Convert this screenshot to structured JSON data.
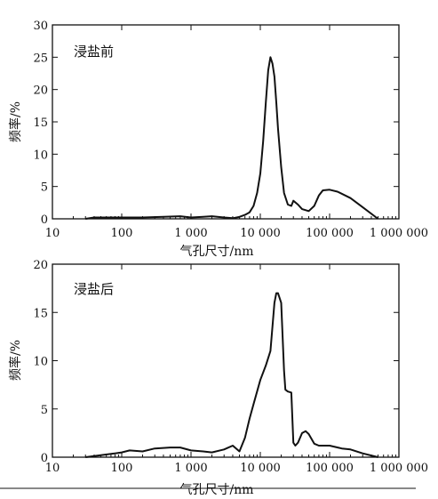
{
  "chart_data": [
    {
      "type": "line",
      "label": "浸盐前",
      "xlabel": "气孔尺寸/nm",
      "ylabel": "频率/%",
      "xscale": "log",
      "xlim": [
        10,
        1000000
      ],
      "ylim": [
        0,
        30
      ],
      "xticks": [
        10,
        100,
        1000,
        10000,
        100000,
        1000000
      ],
      "xtick_labels": [
        "10",
        "100",
        "1 000",
        "10 000",
        "100 000",
        "1 000 000"
      ],
      "yticks": [
        0,
        5,
        10,
        15,
        20,
        25,
        30
      ],
      "ytick_labels": [
        "0",
        "5",
        "10",
        "15",
        "20",
        "25",
        "30"
      ],
      "series": [
        {
          "x": [
            30,
            40,
            60,
            100,
            200,
            400,
            700,
            1000,
            1500,
            2000,
            3000,
            4000,
            5000,
            6000,
            7000,
            8000,
            9000,
            10000,
            11000,
            12000,
            13000,
            14000,
            15000,
            16000,
            17000,
            18000,
            20000,
            22000,
            25000,
            28000,
            30000,
            35000,
            40000,
            50000,
            60000,
            70000,
            80000,
            100000,
            130000,
            200000,
            300000,
            500000
          ],
          "y": [
            0,
            0.2,
            0.2,
            0.2,
            0.2,
            0.3,
            0.4,
            0.2,
            0.3,
            0.4,
            0.2,
            0.1,
            0.3,
            0.6,
            1,
            2,
            4,
            7,
            12,
            18,
            23,
            25,
            24,
            22,
            18,
            14,
            8,
            4,
            2.2,
            2,
            2.8,
            2.2,
            1.5,
            1.2,
            2,
            3.6,
            4.4,
            4.5,
            4.2,
            3.2,
            1.8,
            0
          ]
        }
      ]
    },
    {
      "type": "line",
      "label": "浸盐后",
      "xlabel": "气孔尺寸/nm",
      "ylabel": "频率/%",
      "xscale": "log",
      "xlim": [
        10,
        1000000
      ],
      "ylim": [
        0,
        20
      ],
      "xticks": [
        10,
        100,
        1000,
        10000,
        100000,
        1000000
      ],
      "xtick_labels": [
        "10",
        "100",
        "1 000",
        "10 000",
        "100 000",
        "1 000 000"
      ],
      "yticks": [
        0,
        5,
        10,
        15,
        20
      ],
      "ytick_labels": [
        "0",
        "5",
        "10",
        "15",
        "20"
      ],
      "series": [
        {
          "x": [
            30,
            50,
            80,
            100,
            130,
            200,
            300,
            500,
            700,
            1000,
            1500,
            2000,
            3000,
            4000,
            5000,
            6000,
            7000,
            8000,
            10000,
            12000,
            14000,
            16000,
            17000,
            18000,
            20000,
            22000,
            23000,
            25000,
            28000,
            30000,
            32000,
            35000,
            40000,
            45000,
            50000,
            60000,
            70000,
            80000,
            100000,
            150000,
            200000,
            300000,
            500000
          ],
          "y": [
            0,
            0.2,
            0.4,
            0.5,
            0.7,
            0.6,
            0.9,
            1,
            1,
            0.7,
            0.6,
            0.5,
            0.8,
            1.2,
            0.6,
            2,
            4,
            5.5,
            8,
            9.5,
            11,
            16,
            17,
            17,
            16,
            9,
            7,
            6.8,
            6.7,
            1.5,
            1.2,
            1.5,
            2.5,
            2.7,
            2.4,
            1.4,
            1.2,
            1.2,
            1.2,
            0.9,
            0.8,
            0.4,
            0
          ]
        }
      ]
    }
  ]
}
